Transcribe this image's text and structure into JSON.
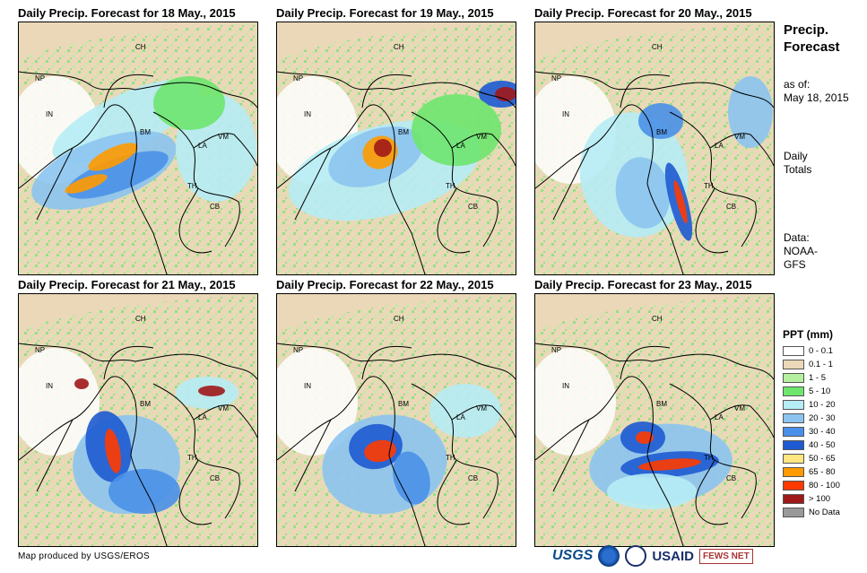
{
  "panels": [
    {
      "title": "Daily Precip. Forecast for 18 May., 2015"
    },
    {
      "title": "Daily Precip. Forecast for 19 May., 2015"
    },
    {
      "title": "Daily Precip. Forecast for 20 May., 2015"
    },
    {
      "title": "Daily Precip. Forecast for 21 May., 2015"
    },
    {
      "title": "Daily Precip. Forecast for 22 May., 2015"
    },
    {
      "title": "Daily Precip. Forecast for 23 May., 2015"
    }
  ],
  "country_labels": {
    "ch": "CH",
    "np": "NP",
    "in": "IN",
    "bm": "BM",
    "vm": "VM",
    "la": "LA",
    "th": "TH",
    "cb": "CB"
  },
  "sidebar": {
    "title_line1": "Precip.",
    "title_line2": "Forecast",
    "asof_label": "as of:",
    "asof_date": "May 18, 2015",
    "type_line1": "Daily",
    "type_line2": "Totals",
    "data_label": "Data:",
    "data_src1": "NOAA-",
    "data_src2": "GFS"
  },
  "legend": {
    "title": "PPT (mm)",
    "items": [
      {
        "label": "0 - 0.1",
        "color": "#ffffff"
      },
      {
        "label": "0.1 - 1",
        "color": "#ead8b8"
      },
      {
        "label": "1 - 5",
        "color": "#b4f0a0"
      },
      {
        "label": "5 - 10",
        "color": "#6ee66e"
      },
      {
        "label": "10 - 20",
        "color": "#b6ecf5"
      },
      {
        "label": "20 - 30",
        "color": "#8cc4f0"
      },
      {
        "label": "30 - 40",
        "color": "#4a90e8"
      },
      {
        "label": "40 - 50",
        "color": "#1e5ad2"
      },
      {
        "label": "50 - 65",
        "color": "#ffe680"
      },
      {
        "label": "65 - 80",
        "color": "#ff9a00"
      },
      {
        "label": "80 - 100",
        "color": "#ff3a00"
      },
      {
        "label": "> 100",
        "color": "#a01818"
      },
      {
        "label": "No Data",
        "color": "#999999"
      }
    ]
  },
  "footer": {
    "credit": "Map produced by USGS/EROS"
  },
  "logos": {
    "usgs": "USGS",
    "usaid": "USAID",
    "fews": "FEWS NET"
  }
}
